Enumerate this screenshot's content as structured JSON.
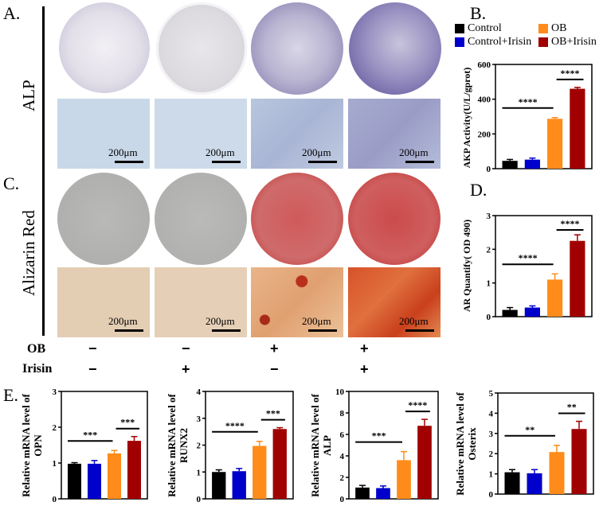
{
  "panels": {
    "A": {
      "letter": "A.",
      "stain_label": "ALP"
    },
    "B": {
      "letter": "B."
    },
    "C": {
      "letter": "C.",
      "stain_label": "Alizarin Red"
    },
    "D": {
      "letter": "D."
    },
    "E": {
      "letter": "E."
    }
  },
  "scale_bar_label": "200μm",
  "conditions": {
    "rows": [
      {
        "label": "OB",
        "values": [
          "−",
          "−",
          "+",
          "+"
        ]
      },
      {
        "label": "Irisin",
        "values": [
          "−",
          "+",
          "−",
          "+"
        ]
      }
    ]
  },
  "legend": {
    "items": [
      {
        "label": "Control",
        "color": "#000000"
      },
      {
        "label": "OB",
        "color": "#FF8C1A"
      },
      {
        "label": "Control+Irisin",
        "color": "#0000CC"
      },
      {
        "label": "OB+Irisin",
        "color": "#A00000"
      }
    ]
  },
  "colors": {
    "control": "#000000",
    "control_irisin": "#0000CC",
    "ob": "#FF8C1A",
    "ob_irisin": "#A00000"
  },
  "chart_data": [
    {
      "id": "B",
      "type": "bar",
      "title": "",
      "categories": [
        "Control",
        "Control+Irisin",
        "OB",
        "OB+Irisin"
      ],
      "values": [
        45,
        52,
        287,
        460
      ],
      "errors": [
        8,
        9,
        7,
        8
      ],
      "ylabel": "AKP Activity(U/L/gprot)",
      "xlabel": "",
      "ylim": [
        0,
        600
      ],
      "yticks": [
        0,
        200,
        400,
        600
      ],
      "significance": [
        {
          "from": "Control",
          "to": "OB",
          "label": "****"
        },
        {
          "from": "OB",
          "to": "OB+Irisin",
          "label": "****"
        }
      ]
    },
    {
      "id": "D",
      "type": "bar",
      "title": "",
      "categories": [
        "Control",
        "Control+Irisin",
        "OB",
        "OB+Irisin"
      ],
      "values": [
        0.2,
        0.27,
        1.1,
        2.25
      ],
      "errors": [
        0.07,
        0.05,
        0.17,
        0.18
      ],
      "ylabel": "AR Quantify( OD 490)",
      "xlabel": "",
      "ylim": [
        0,
        3
      ],
      "yticks": [
        0,
        1,
        2,
        3
      ],
      "significance": [
        {
          "from": "Control",
          "to": "OB",
          "label": "****"
        },
        {
          "from": "OB",
          "to": "OB+Irisin",
          "label": "****"
        }
      ]
    },
    {
      "id": "E-OPN",
      "type": "bar",
      "categories": [
        "Control",
        "Control+Irisin",
        "OB",
        "OB+Irisin"
      ],
      "values": [
        0.98,
        0.98,
        1.27,
        1.62
      ],
      "errors": [
        0.03,
        0.09,
        0.08,
        0.12
      ],
      "ylabel": "Relative mRNA level of OPN",
      "xlabel": "",
      "ylim": [
        0,
        3
      ],
      "yticks": [
        0,
        1,
        2,
        3
      ],
      "significance": [
        {
          "from": "Control",
          "to": "OB",
          "label": "***"
        },
        {
          "from": "OB",
          "to": "OB+Irisin",
          "label": "***"
        }
      ]
    },
    {
      "id": "E-RUNX2",
      "type": "bar",
      "categories": [
        "Control",
        "Control+Irisin",
        "OB",
        "OB+Irisin"
      ],
      "values": [
        1.0,
        1.03,
        1.97,
        2.6
      ],
      "errors": [
        0.08,
        0.1,
        0.17,
        0.05
      ],
      "ylabel": "Relative mRNA level of RUNX2",
      "xlabel": "",
      "ylim": [
        0,
        4
      ],
      "yticks": [
        0,
        1,
        2,
        3,
        4
      ],
      "significance": [
        {
          "from": "Control",
          "to": "OB",
          "label": "****"
        },
        {
          "from": "OB",
          "to": "OB+Irisin",
          "label": "***"
        }
      ]
    },
    {
      "id": "E-ALP",
      "type": "bar",
      "categories": [
        "Control",
        "Control+Irisin",
        "OB",
        "OB+Irisin"
      ],
      "values": [
        1.05,
        1.0,
        3.6,
        6.8
      ],
      "errors": [
        0.2,
        0.2,
        0.8,
        0.6
      ],
      "ylabel": "Relative mRNA level of ALP",
      "xlabel": "",
      "ylim": [
        0,
        10
      ],
      "yticks": [
        0,
        2,
        4,
        6,
        8,
        10
      ],
      "significance": [
        {
          "from": "Control",
          "to": "OB",
          "label": "***"
        },
        {
          "from": "OB",
          "to": "OB+Irisin",
          "label": "****"
        }
      ]
    },
    {
      "id": "E-Osterix",
      "type": "bar",
      "categories": [
        "Control",
        "Control+Irisin",
        "OB",
        "OB+Irisin"
      ],
      "values": [
        1.08,
        1.03,
        2.08,
        3.22
      ],
      "errors": [
        0.13,
        0.18,
        0.33,
        0.38
      ],
      "ylabel": "Relative mRNA level of Osterix",
      "xlabel": "",
      "ylim": [
        0,
        5
      ],
      "yticks": [
        0,
        1,
        2,
        3,
        4,
        5
      ],
      "significance": [
        {
          "from": "Control",
          "to": "OB",
          "label": "**"
        },
        {
          "from": "OB",
          "to": "OB+Irisin",
          "label": "**"
        }
      ]
    }
  ]
}
